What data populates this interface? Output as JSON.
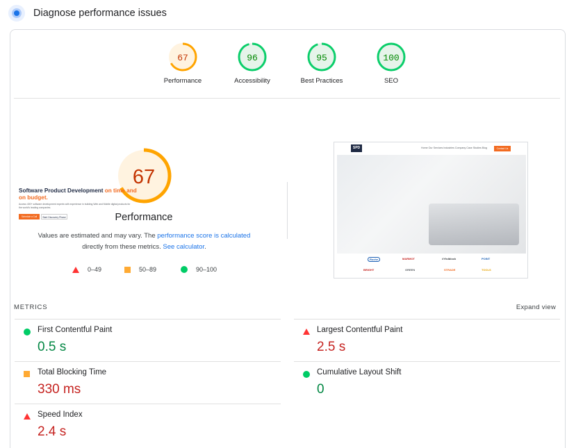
{
  "header": {
    "title": "Diagnose performance issues"
  },
  "categories": [
    {
      "score": "67",
      "label": "Performance",
      "value": 67,
      "color": "#ffa400",
      "bg": "#fff3e0",
      "text_color": "#c33300"
    },
    {
      "score": "96",
      "label": "Accessibility",
      "value": 96,
      "color": "#0cce6b",
      "bg": "#e6f4ea",
      "text_color": "#008800"
    },
    {
      "score": "95",
      "label": "Best Practices",
      "value": 95,
      "color": "#0cce6b",
      "bg": "#e6f4ea",
      "text_color": "#008800"
    },
    {
      "score": "100",
      "label": "SEO",
      "value": 100,
      "color": "#0cce6b",
      "bg": "#e6f4ea",
      "text_color": "#008800"
    }
  ],
  "performance": {
    "score": "67",
    "title": "Performance",
    "desc_1": "Values are estimated and may vary. The ",
    "desc_link_1": "performance score is calculated",
    "desc_2": " directly from these metrics. ",
    "desc_link_2": "See calculator",
    "desc_3": "."
  },
  "legend": [
    {
      "shape": "triangle",
      "range": "0–49",
      "color": "#ff3333"
    },
    {
      "shape": "square",
      "range": "50–89",
      "color": "#ffaa33"
    },
    {
      "shape": "circle",
      "range": "90–100",
      "color": "#00cc66"
    }
  ],
  "screenshot": {
    "logo": "SPD",
    "nav_links": "Home   Our Services   Industries   Company   Case Studies   Blog",
    "contact": "Contact Us",
    "headline_1": "Software Product Development ",
    "headline_2": "on time and on budget.",
    "sub": "Access 400+ software development experts with experience in building Web and Mobile digital products for the world's leading companies.",
    "btn_1": "Schedule a Call",
    "btn_2": "Start Discovery Phase",
    "clients": [
      "Roche",
      "MARMOT",
      "#Yhdblock",
      "POINT",
      "BRIGHT",
      "GREEN",
      "STRADE",
      "TOOLS"
    ]
  },
  "metrics": {
    "heading": "METRICS",
    "expand": "Expand view",
    "items": [
      {
        "label": "First Contentful Paint",
        "value": "0.5 s",
        "status": "pass",
        "shape": "circle"
      },
      {
        "label": "Largest Contentful Paint",
        "value": "2.5 s",
        "status": "fail",
        "shape": "triangle"
      },
      {
        "label": "Total Blocking Time",
        "value": "330 ms",
        "status": "average",
        "shape": "square"
      },
      {
        "label": "Cumulative Layout Shift",
        "value": "0",
        "status": "pass",
        "shape": "circle"
      },
      {
        "label": "Speed Index",
        "value": "2.4 s",
        "status": "fail",
        "shape": "triangle"
      }
    ]
  },
  "colors": {
    "pass": "#0cce6b",
    "average": "#ffa400",
    "fail": "#ff4e42",
    "link": "#1a73e8"
  }
}
